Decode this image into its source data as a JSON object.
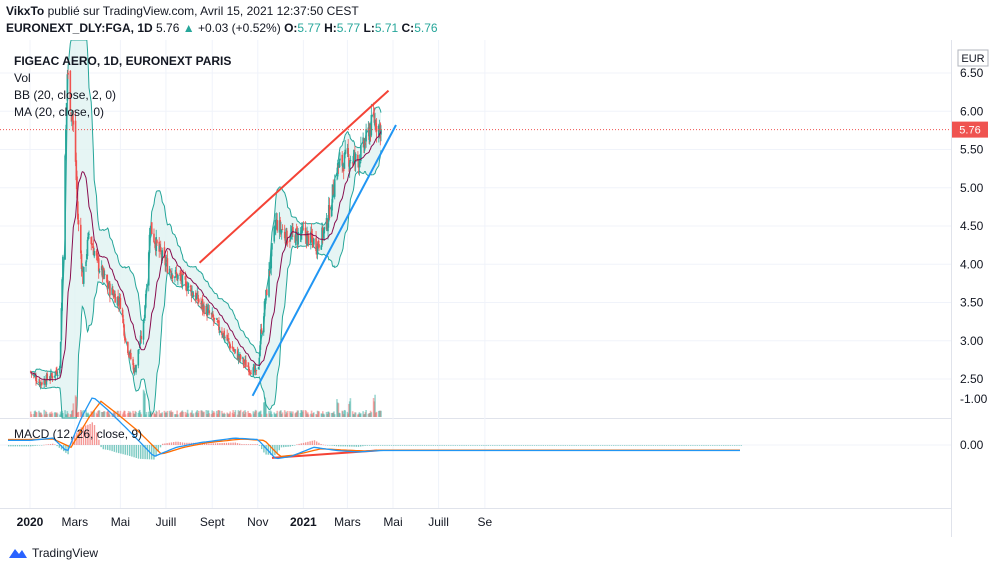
{
  "header": {
    "publisher": "VikxTo",
    "published_text": "publié sur TradingView.com, Avril 15, 2021 12:37:50 CEST",
    "symbol": "EURONEXT_DLY:FGA, 1D",
    "last": "5.76",
    "change_arrow": "▲",
    "change": "+0.03 (+0.52%)",
    "o_label": "O:",
    "o_value": "5.77",
    "h_label": "H:",
    "h_value": "5.77",
    "l_label": "L:",
    "l_value": "5.71",
    "c_label": "C:",
    "c_value": "5.76"
  },
  "legend": {
    "title": "FIGEAC AERO, 1D, EURONEXT PARIS",
    "vol": "Vol",
    "bb": "BB (20, close, 2, 0)",
    "ma": "MA (20, close, 0)",
    "macd": "MACD (12, 26, close, 9)"
  },
  "currency": "EUR",
  "last_price_label": "5.76",
  "footer": {
    "brand": "TradingView",
    "logo_icon": "tradingview-logo-icon"
  },
  "colors": {
    "up": "#26a69a",
    "down": "#ef5350",
    "bb": "#26a69a",
    "bb_fill": "#e0f2f1",
    "ma": "#880e4f",
    "macd": "#2196f3",
    "signal": "#ff6d00",
    "resistance": "#f44336",
    "support": "#2196f3",
    "grid": "#f0f3fa"
  },
  "chart_data": {
    "type": "candlestick",
    "price_axis": {
      "ticks": [
        "6.50",
        "6.00",
        "5.50",
        "5.00",
        "4.50",
        "4.00",
        "3.50",
        "3.00",
        "2.50"
      ],
      "ylim": [
        2.05,
        6.72
      ]
    },
    "macd_axis": {
      "ticks": [
        "0.00",
        "-1.00"
      ],
      "ylim": [
        -1.3,
        0.45
      ]
    },
    "x_ticks": [
      "2020",
      "Mars",
      "Mai",
      "Juill",
      "Sept",
      "Nov",
      "2021",
      "Mars",
      "Mai",
      "Juill",
      "Se"
    ],
    "price_path": [
      [
        "2020-01-01",
        2.6
      ],
      [
        "2020-01-15",
        2.45
      ],
      [
        "2020-02-01",
        2.55
      ],
      [
        "2020-02-10",
        2.65
      ],
      [
        "2020-02-20",
        6.5
      ],
      [
        "2020-03-01",
        5.6
      ],
      [
        "2020-03-05",
        4.6
      ],
      [
        "2020-03-12",
        3.8
      ],
      [
        "2020-03-20",
        4.4
      ],
      [
        "2020-04-01",
        4.0
      ],
      [
        "2020-04-15",
        3.7
      ],
      [
        "2020-05-01",
        3.5
      ],
      [
        "2020-05-08",
        3.0
      ],
      [
        "2020-05-20",
        2.6
      ],
      [
        "2020-06-01",
        3.2
      ],
      [
        "2020-06-10",
        4.5
      ],
      [
        "2020-06-20",
        4.2
      ],
      [
        "2020-07-01",
        4.0
      ],
      [
        "2020-07-15",
        3.85
      ],
      [
        "2020-08-01",
        3.7
      ],
      [
        "2020-08-15",
        3.5
      ],
      [
        "2020-09-01",
        3.3
      ],
      [
        "2020-09-15",
        3.1
      ],
      [
        "2020-10-01",
        2.85
      ],
      [
        "2020-10-15",
        2.7
      ],
      [
        "2020-11-01",
        2.55
      ],
      [
        "2020-11-05",
        3.1
      ],
      [
        "2020-11-15",
        3.8
      ],
      [
        "2020-11-25",
        4.55
      ],
      [
        "2020-12-10",
        4.35
      ],
      [
        "2021-01-01",
        4.4
      ],
      [
        "2021-01-20",
        4.25
      ],
      [
        "2021-02-01",
        4.5
      ],
      [
        "2021-02-15",
        5.25
      ],
      [
        "2021-03-01",
        5.4
      ],
      [
        "2021-03-15",
        5.35
      ],
      [
        "2021-03-25",
        5.6
      ],
      [
        "2021-04-05",
        5.9
      ],
      [
        "2021-04-15",
        5.76
      ]
    ],
    "volume_spikes": [
      [
        "2020-03-01",
        0.55
      ],
      [
        "2020-06-01",
        0.7
      ],
      [
        "2020-11-10",
        0.5
      ],
      [
        "2021-02-15",
        0.45
      ],
      [
        "2021-03-05",
        0.5
      ],
      [
        "2021-04-05",
        0.6
      ]
    ],
    "macd_path": [
      [
        "2020-01-01",
        -0.1
      ],
      [
        "2020-02-01",
        -0.15
      ],
      [
        "2020-02-20",
        0.15
      ],
      [
        "2020-03-10",
        -0.6
      ],
      [
        "2020-03-25",
        -1.05
      ],
      [
        "2020-04-15",
        -0.75
      ],
      [
        "2020-05-10",
        -0.35
      ],
      [
        "2020-06-15",
        0.25
      ],
      [
        "2020-07-15",
        0.05
      ],
      [
        "2020-08-15",
        -0.05
      ],
      [
        "2020-10-01",
        -0.15
      ],
      [
        "2020-11-01",
        -0.12
      ],
      [
        "2020-11-25",
        0.3
      ],
      [
        "2020-12-15",
        0.25
      ],
      [
        "2021-01-15",
        0.05
      ],
      [
        "2021-02-15",
        0.12
      ],
      [
        "2021-03-15",
        0.15
      ],
      [
        "2021-04-15",
        0.12
      ]
    ],
    "signal_path": [
      [
        "2020-01-01",
        -0.12
      ],
      [
        "2020-02-01",
        -0.13
      ],
      [
        "2020-02-25",
        0.05
      ],
      [
        "2020-03-20",
        -0.6
      ],
      [
        "2020-04-05",
        -0.95
      ],
      [
        "2020-04-25",
        -0.7
      ],
      [
        "2020-05-25",
        -0.3
      ],
      [
        "2020-06-25",
        0.2
      ],
      [
        "2020-07-25",
        0.05
      ],
      [
        "2020-08-25",
        -0.05
      ],
      [
        "2020-10-10",
        -0.13
      ],
      [
        "2020-11-10",
        -0.1
      ],
      [
        "2020-12-01",
        0.25
      ],
      [
        "2020-12-20",
        0.22
      ],
      [
        "2021-01-25",
        0.08
      ],
      [
        "2021-02-25",
        0.11
      ],
      [
        "2021-03-25",
        0.13
      ],
      [
        "2021-04-15",
        0.11
      ]
    ],
    "trendlines": {
      "resistance": [
        [
          "2020-08-15",
          4.02
        ],
        [
          "2021-04-25",
          6.27
        ]
      ],
      "support": [
        [
          "2020-10-25",
          2.28
        ],
        [
          "2021-05-05",
          5.82
        ]
      ],
      "macd_divergence": [
        [
          "2020-11-20",
          0.28
        ],
        [
          "2021-04-10",
          0.12
        ]
      ]
    },
    "last_price": 5.76
  }
}
